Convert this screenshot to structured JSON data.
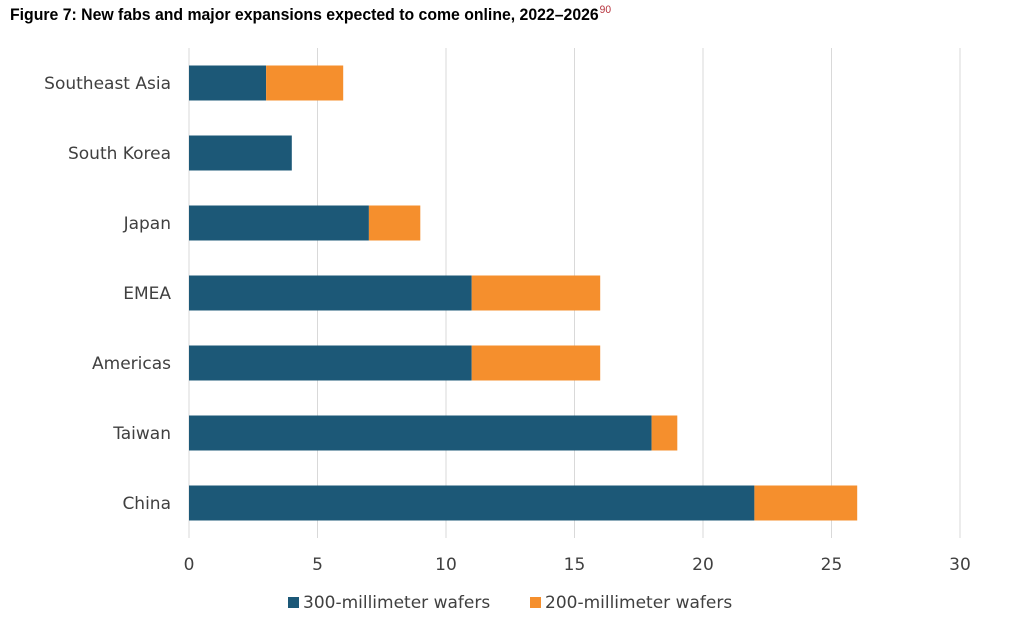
{
  "figure": {
    "title": "Figure 7: New fabs and major expansions expected to come online, 2022–2026",
    "footnote": "90"
  },
  "colors": {
    "series_300": "#1c5877",
    "series_200": "#f58f2d",
    "grid": "#d9d9d9",
    "footnote": "#b5303a"
  },
  "chart_data": {
    "type": "bar",
    "orientation": "horizontal",
    "stacked": true,
    "title": "Figure 7: New fabs and major expansions expected to come online, 2022–2026",
    "xlabel": "",
    "ylabel": "",
    "categories": [
      "Southeast Asia",
      "South Korea",
      "Japan",
      "EMEA",
      "Americas",
      "Taiwan",
      "China"
    ],
    "series": [
      {
        "name": "300-millimeter wafers",
        "values": [
          3,
          4,
          7,
          11,
          11,
          18,
          22
        ]
      },
      {
        "name": "200-millimeter wafers",
        "values": [
          3,
          0,
          2,
          5,
          5,
          1,
          4
        ]
      }
    ],
    "xlim": [
      0,
      30
    ],
    "xticks": [
      "0",
      "5",
      "10",
      "15",
      "20",
      "25",
      "30"
    ],
    "grid": true,
    "legend": "bottom"
  }
}
